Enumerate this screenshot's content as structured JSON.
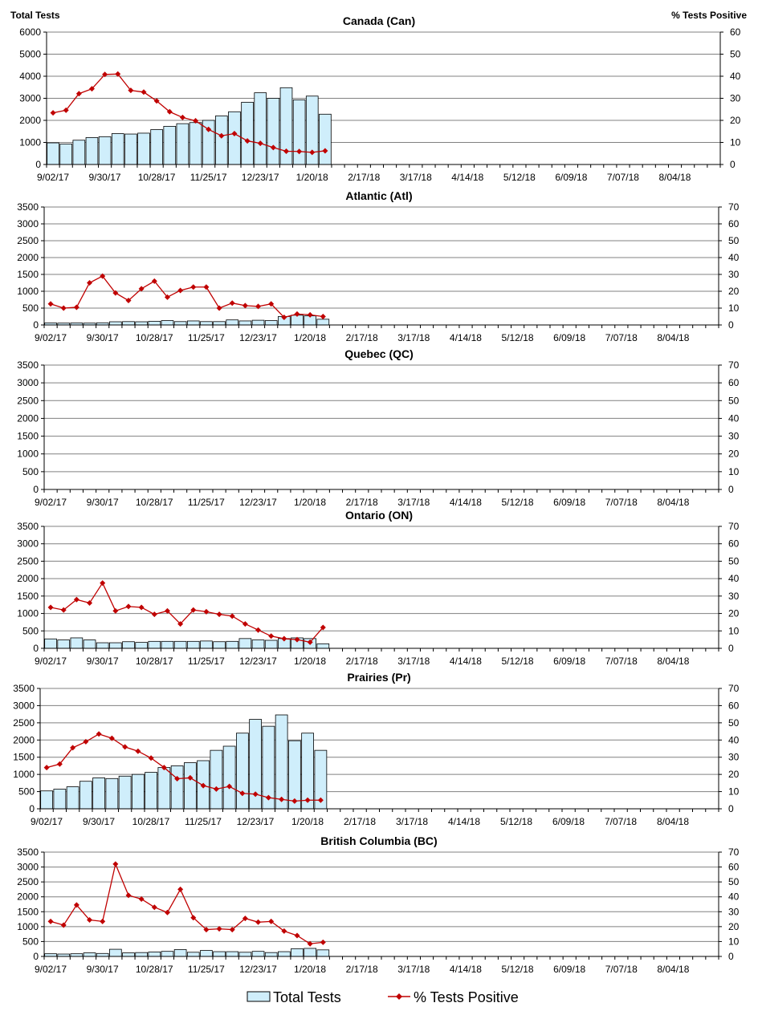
{
  "header": {
    "left_label": "Total Tests",
    "right_label": "% Tests Positive"
  },
  "legend": {
    "bars_label": "Total Tests",
    "line_label": "% Tests Positive"
  },
  "colors": {
    "bar_fill": "#cfeefb",
    "bar_stroke": "#000000",
    "line": "#c00000",
    "grid": "#808080"
  },
  "chart_data": [
    {
      "type": "bar",
      "title": "Canada (Can)",
      "xlabel": "",
      "ylabel": "Total Tests",
      "y2label": "% Tests Positive",
      "ylim": [
        0,
        6000
      ],
      "yticks": [
        0,
        1000,
        2000,
        3000,
        4000,
        5000,
        6000
      ],
      "y2lim": [
        0,
        60
      ],
      "y2ticks": [
        0,
        10,
        20,
        30,
        40,
        50,
        60
      ],
      "x_tick_labels": [
        "9/02/17",
        "9/30/17",
        "10/28/17",
        "11/25/17",
        "12/23/17",
        "1/20/18",
        "2/17/18",
        "3/17/18",
        "4/14/18",
        "5/12/18",
        "6/09/18",
        "7/07/18",
        "8/04/18"
      ],
      "n_weeks": 52,
      "series": [
        {
          "name": "Total Tests",
          "kind": "bar",
          "values": [
            980,
            930,
            1100,
            1220,
            1260,
            1400,
            1380,
            1420,
            1580,
            1730,
            1850,
            1900,
            2000,
            2200,
            2390,
            2820,
            3250,
            3000,
            3480,
            2930,
            3100,
            2280
          ]
        },
        {
          "name": "% Tests Positive",
          "kind": "line",
          "values": [
            23.4,
            24.6,
            32.1,
            34.3,
            40.8,
            41.0,
            33.6,
            32.8,
            28.8,
            23.9,
            21.3,
            19.8,
            15.9,
            13.0,
            14.0,
            10.7,
            9.6,
            7.7,
            6.0,
            5.9,
            5.5,
            6.2
          ]
        }
      ]
    },
    {
      "type": "bar",
      "title": "Atlantic (Atl)",
      "xlabel": "",
      "ylabel": "Total Tests",
      "y2label": "% Tests Positive",
      "ylim": [
        0,
        3500
      ],
      "yticks": [
        0,
        500,
        1000,
        1500,
        2000,
        2500,
        3000,
        3500
      ],
      "y2lim": [
        0,
        70
      ],
      "y2ticks": [
        0,
        10,
        20,
        30,
        40,
        50,
        60,
        70
      ],
      "x_tick_labels": [
        "9/02/17",
        "9/30/17",
        "10/28/17",
        "11/25/17",
        "12/23/17",
        "1/20/18",
        "2/17/18",
        "3/17/18",
        "4/14/18",
        "5/12/18",
        "6/09/18",
        "7/07/18",
        "8/04/18"
      ],
      "n_weeks": 52,
      "series": [
        {
          "name": "Total Tests",
          "kind": "bar",
          "values": [
            60,
            55,
            60,
            55,
            65,
            95,
            100,
            95,
            110,
            130,
            100,
            120,
            100,
            100,
            150,
            120,
            140,
            130,
            250,
            290,
            270,
            170
          ]
        },
        {
          "name": "% Tests Positive",
          "kind": "line",
          "values": [
            12.5,
            10.0,
            10.5,
            25.0,
            29.0,
            19.0,
            14.5,
            21.5,
            26.0,
            16.5,
            20.5,
            22.5,
            22.5,
            10.0,
            13.0,
            11.5,
            11.0,
            12.5,
            4.5,
            6.5,
            6.0,
            5.0
          ]
        }
      ]
    },
    {
      "type": "bar",
      "title": "Quebec (QC)",
      "xlabel": "",
      "ylabel": "Total Tests",
      "y2label": "% Tests Positive",
      "ylim": [
        0,
        3500
      ],
      "yticks": [
        0,
        500,
        1000,
        1500,
        2000,
        2500,
        3000,
        3500
      ],
      "y2lim": [
        0,
        70
      ],
      "y2ticks": [
        0,
        10,
        20,
        30,
        40,
        50,
        60,
        70
      ],
      "x_tick_labels": [
        "9/02/17",
        "9/30/17",
        "10/28/17",
        "11/25/17",
        "12/23/17",
        "1/20/18",
        "2/17/18",
        "3/17/18",
        "4/14/18",
        "5/12/18",
        "6/09/18",
        "7/07/18",
        "8/04/18"
      ],
      "n_weeks": 52,
      "series": [
        {
          "name": "Total Tests",
          "kind": "bar",
          "values": []
        },
        {
          "name": "% Tests Positive",
          "kind": "line",
          "values": []
        }
      ]
    },
    {
      "type": "bar",
      "title": "Ontario (ON)",
      "xlabel": "",
      "ylabel": "Total Tests",
      "y2label": "% Tests Positive",
      "ylim": [
        0,
        3500
      ],
      "yticks": [
        0,
        500,
        1000,
        1500,
        2000,
        2500,
        3000,
        3500
      ],
      "y2lim": [
        0,
        70
      ],
      "y2ticks": [
        0,
        10,
        20,
        30,
        40,
        50,
        60,
        70
      ],
      "x_tick_labels": [
        "9/02/17",
        "9/30/17",
        "10/28/17",
        "11/25/17",
        "12/23/17",
        "1/20/18",
        "2/17/18",
        "3/17/18",
        "4/14/18",
        "5/12/18",
        "6/09/18",
        "7/07/18",
        "8/04/18"
      ],
      "n_weeks": 52,
      "series": [
        {
          "name": "Total Tests",
          "kind": "bar",
          "values": [
            270,
            240,
            300,
            240,
            160,
            160,
            190,
            170,
            200,
            200,
            200,
            200,
            210,
            190,
            200,
            280,
            240,
            230,
            280,
            300,
            280,
            130
          ]
        },
        {
          "name": "% Tests Positive",
          "kind": "line",
          "values": [
            23.5,
            22.0,
            28.0,
            26.0,
            37.5,
            21.5,
            24.0,
            23.5,
            19.5,
            21.5,
            14.0,
            22.0,
            21.0,
            19.5,
            18.5,
            14.0,
            10.5,
            7.0,
            5.5,
            5.0,
            3.5,
            12.0
          ]
        }
      ]
    },
    {
      "type": "bar",
      "title": "Prairies (Pr)",
      "xlabel": "",
      "ylabel": "Total Tests",
      "y2label": "% Tests Positive",
      "ylim": [
        0,
        3500
      ],
      "yticks": [
        0,
        500,
        1000,
        1500,
        2000,
        2500,
        3000,
        3500
      ],
      "y2lim": [
        0,
        70
      ],
      "y2ticks": [
        0,
        10,
        20,
        30,
        40,
        50,
        60,
        70
      ],
      "x_tick_labels": [
        "9/02/17",
        "9/30/17",
        "10/28/17",
        "11/25/17",
        "12/23/17",
        "1/20/18",
        "2/17/18",
        "3/17/18",
        "4/14/18",
        "5/12/18",
        "6/09/18",
        "7/07/18",
        "8/04/18"
      ],
      "n_weeks": 52,
      "series": [
        {
          "name": "Total Tests",
          "kind": "bar",
          "values": [
            520,
            570,
            640,
            800,
            900,
            880,
            950,
            1000,
            1060,
            1200,
            1250,
            1340,
            1400,
            1700,
            1820,
            2200,
            2600,
            2400,
            2730,
            1980,
            2200,
            1700
          ]
        },
        {
          "name": "% Tests Positive",
          "kind": "line",
          "values": [
            24.0,
            26.0,
            35.5,
            39.0,
            43.5,
            41.0,
            36.0,
            33.5,
            29.5,
            24.0,
            17.5,
            18.0,
            13.5,
            11.5,
            13.0,
            9.0,
            8.5,
            6.5,
            5.5,
            4.5,
            5.0,
            5.0
          ]
        }
      ]
    },
    {
      "type": "bar",
      "title": "British Columbia (BC)",
      "xlabel": "",
      "ylabel": "Total Tests",
      "y2label": "% Tests Positive",
      "ylim": [
        0,
        3500
      ],
      "yticks": [
        0,
        500,
        1000,
        1500,
        2000,
        2500,
        3000,
        3500
      ],
      "y2lim": [
        0,
        70
      ],
      "y2ticks": [
        0,
        10,
        20,
        30,
        40,
        50,
        60,
        70
      ],
      "x_tick_labels": [
        "9/02/17",
        "9/30/17",
        "10/28/17",
        "11/25/17",
        "12/23/17",
        "1/20/18",
        "2/17/18",
        "3/17/18",
        "4/14/18",
        "5/12/18",
        "6/09/18",
        "7/07/18",
        "8/04/18"
      ],
      "n_weeks": 52,
      "series": [
        {
          "name": "Total Tests",
          "kind": "bar",
          "values": [
            90,
            80,
            90,
            120,
            100,
            240,
            120,
            130,
            150,
            170,
            230,
            140,
            200,
            160,
            160,
            140,
            170,
            130,
            160,
            260,
            270,
            220
          ]
        },
        {
          "name": "% Tests Positive",
          "kind": "line",
          "values": [
            23.5,
            21.0,
            34.5,
            24.5,
            23.5,
            62.0,
            41.0,
            38.5,
            33.0,
            29.5,
            45.0,
            26.0,
            18.0,
            18.5,
            18.0,
            25.5,
            23.0,
            23.5,
            17.0,
            14.0,
            8.5,
            9.5
          ]
        }
      ]
    }
  ]
}
